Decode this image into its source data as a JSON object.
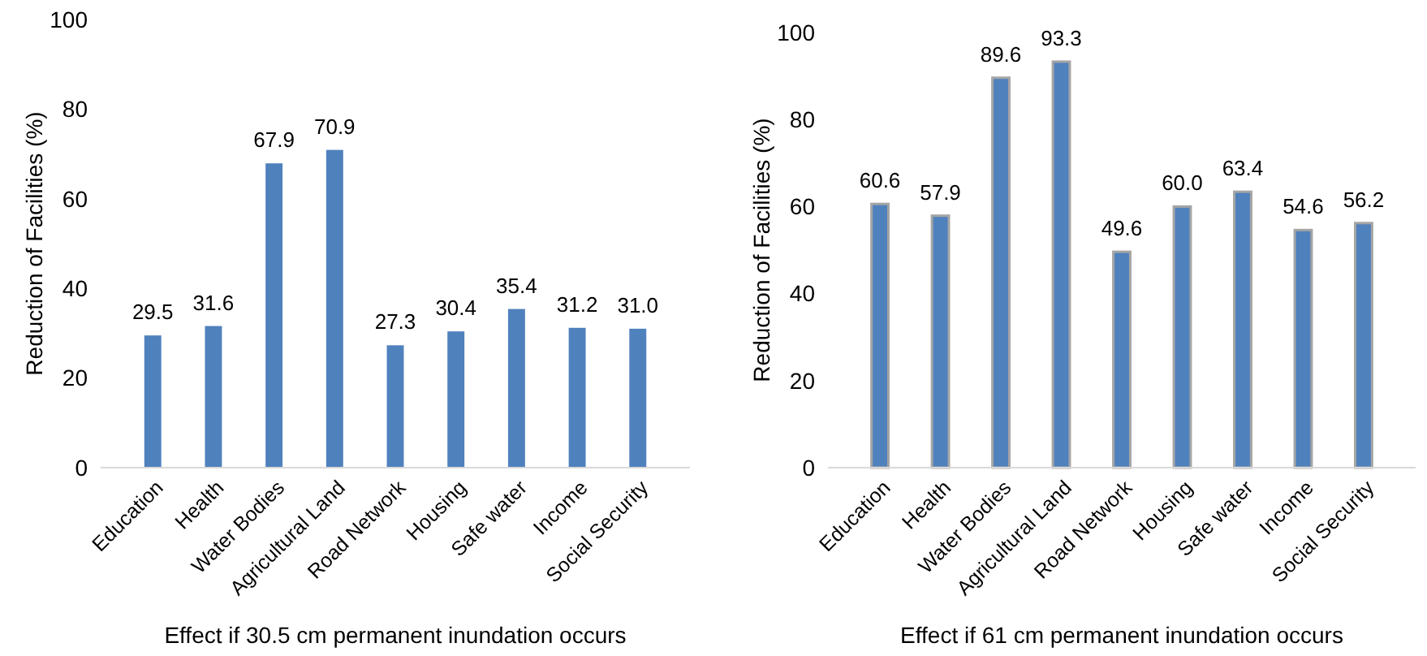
{
  "chart_data": [
    {
      "type": "bar",
      "xlabel": "Effect if 30.5 cm permanent inundation occurs",
      "ylabel": "Reduction of Facilities (%)",
      "categories": [
        "Education",
        "Health",
        "Water Bodies",
        "Agricultural Land",
        "Road Network",
        "Housing",
        "Safe water",
        "Income",
        "Social Security"
      ],
      "values": [
        29.5,
        31.6,
        67.9,
        70.9,
        27.3,
        30.4,
        35.4,
        31.2,
        31.0
      ],
      "color": "#4f81bd",
      "value_labels": [
        "29.5",
        "31.6",
        "67.9",
        "70.9",
        "27.3",
        "30.4",
        "35.4",
        "31.2",
        "31.0"
      ],
      "ylim": [
        0,
        100
      ],
      "yticks": [
        0,
        20,
        40,
        60,
        80,
        100
      ],
      "grid": false
    },
    {
      "type": "bar",
      "xlabel": "Effect if 61 cm permanent inundation occurs",
      "ylabel": "Reduction of Facilities (%)",
      "categories": [
        "Education",
        "Health",
        "Water Bodies",
        "Agricultural Land",
        "Road Network",
        "Housing",
        "Safe water",
        "Income",
        "Social Security"
      ],
      "values": [
        60.6,
        57.9,
        89.6,
        93.3,
        49.6,
        60.0,
        63.4,
        54.6,
        56.2
      ],
      "color": "#4f81bd",
      "value_labels": [
        "60.6",
        "57.9",
        "89.6",
        "93.3",
        "49.6",
        "60.0",
        "63.4",
        "54.6",
        "56.2"
      ],
      "ylim": [
        0,
        100
      ],
      "yticks": [
        0,
        20,
        40,
        60,
        80,
        100
      ],
      "grid": false
    }
  ]
}
